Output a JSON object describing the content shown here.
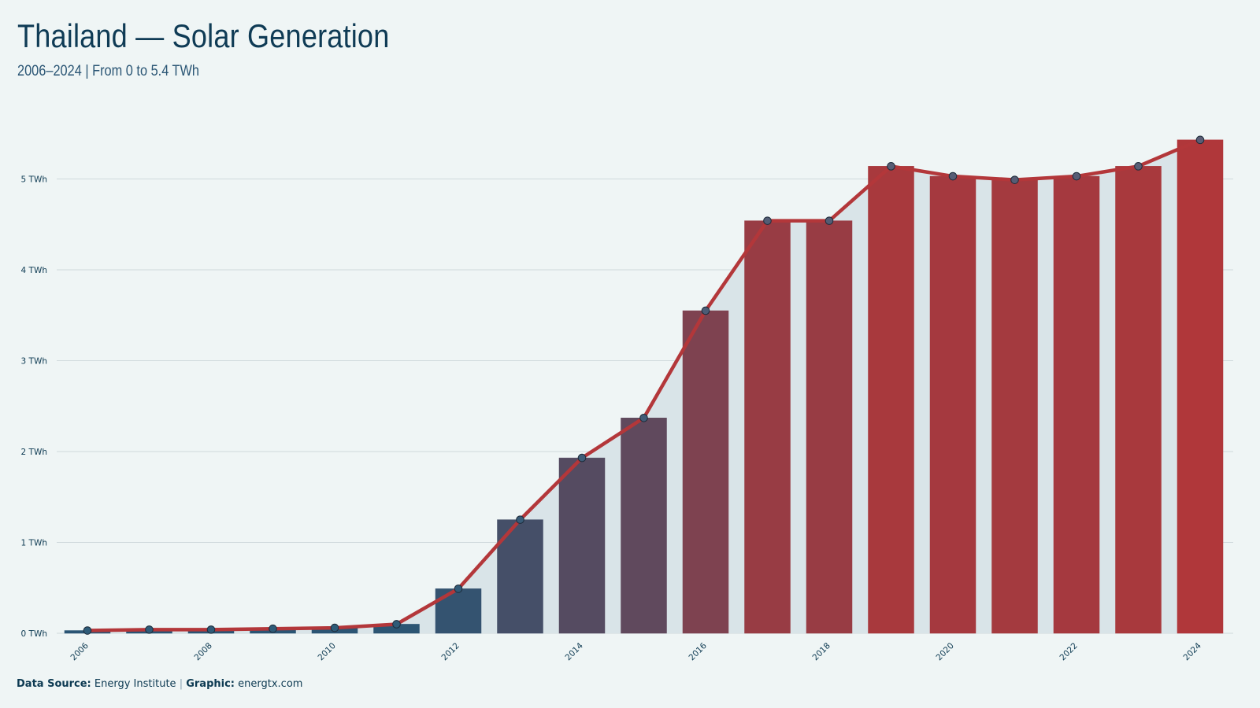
{
  "title": "Thailand — Solar Generation",
  "subtitle": "2006–2024 | From 0 to 5.4 TWh",
  "footer": {
    "source_label": "Data Source:",
    "source_value": "Energy Institute",
    "separator": "|",
    "graphic_label": "Graphic:",
    "graphic_value": "energtx.com"
  },
  "chart_data": {
    "type": "bar",
    "categories": [
      2006,
      2007,
      2008,
      2009,
      2010,
      2011,
      2012,
      2013,
      2014,
      2015,
      2016,
      2017,
      2018,
      2019,
      2020,
      2021,
      2022,
      2023,
      2024
    ],
    "values": [
      0.03,
      0.04,
      0.04,
      0.05,
      0.06,
      0.1,
      0.49,
      1.25,
      1.93,
      2.37,
      3.55,
      4.54,
      4.54,
      5.14,
      5.03,
      4.99,
      5.03,
      5.14,
      5.43
    ],
    "x_tick_labels": [
      "2006",
      "2008",
      "2010",
      "2012",
      "2014",
      "2016",
      "2018",
      "2020",
      "2022",
      "2024"
    ],
    "y_tick_labels": [
      "0 TWh",
      "1 TWh",
      "2 TWh",
      "3 TWh",
      "4 TWh",
      "5 TWh"
    ],
    "y_ticks": [
      0,
      1,
      2,
      3,
      4,
      5
    ],
    "unit": "TWh",
    "ylim": [
      0,
      5.8
    ],
    "xlabel": "",
    "ylabel": "",
    "grid": true,
    "overlay": "line with markers and shaded area",
    "colors": {
      "low": "#2a5574",
      "high": "#b0373a",
      "line": "#b3373a",
      "area": "#d9e4e8",
      "marker_fill": "#5a5d75",
      "grid": "#cfd9dc"
    }
  }
}
